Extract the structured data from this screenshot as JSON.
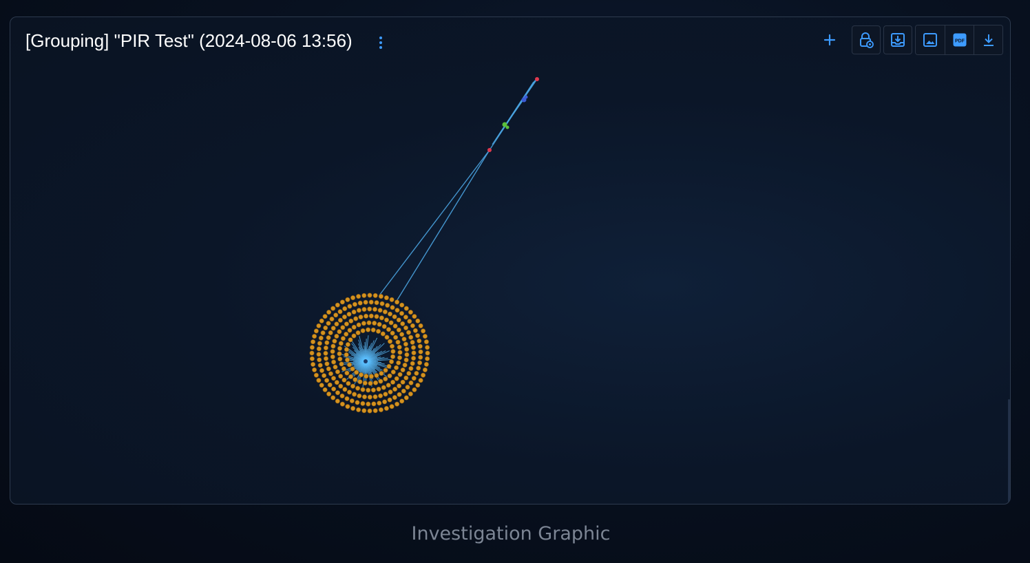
{
  "panel": {
    "title": "[Grouping] \"PIR Test\" (2024-08-06 13:56)"
  },
  "toolbar": {
    "add": {
      "icon": "plus-icon"
    },
    "buttons": [
      {
        "name": "lock-settings-button",
        "icon": "lock-gear-icon"
      },
      {
        "name": "save-button",
        "icon": "tray-download-icon"
      },
      {
        "name": "export-image-button",
        "icon": "image-icon"
      },
      {
        "name": "export-pdf-button",
        "icon": "pdf-icon",
        "label": "PDF"
      },
      {
        "name": "download-button",
        "icon": "download-icon"
      }
    ],
    "accent_color": "#3d9bff"
  },
  "graph": {
    "node_colors": {
      "cluster": "#d4921f",
      "hub": "#5cc0ff",
      "edge": "#4aa3e0",
      "red_node": "#e0394f",
      "green_node": "#5bbf3a",
      "blue_node": "#3b5bd6"
    }
  },
  "caption": "Investigation Graphic"
}
